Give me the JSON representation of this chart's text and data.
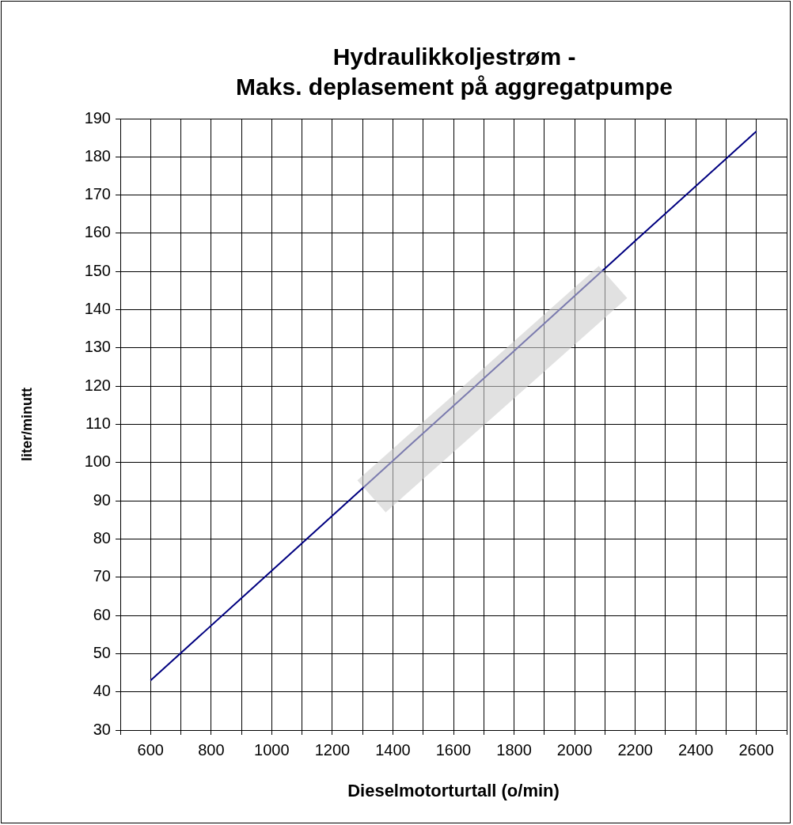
{
  "chart_data": {
    "type": "line",
    "title": "Hydraulikkoljestrøm -\nMaks. deplasement på aggregatpumpe",
    "xlabel": "Dieselmotorturtall (o/min)",
    "ylabel": "liter/minutt",
    "x": [
      600,
      1000,
      1400,
      1800,
      2200,
      2600
    ],
    "series": [
      {
        "color": "#000080",
        "values": [
          43,
          71.7,
          100.5,
          129.2,
          158,
          186.7
        ]
      }
    ],
    "xlim": [
      500,
      2700
    ],
    "xticks": [
      {
        "value": 500,
        "label": null
      },
      600,
      {
        "value": 700,
        "label": null
      },
      800,
      {
        "value": 900,
        "label": null
      },
      1000,
      {
        "value": 1100,
        "label": null
      },
      1200,
      {
        "value": 1300,
        "label": null
      },
      1400,
      {
        "value": 1500,
        "label": null
      },
      1600,
      {
        "value": 1700,
        "label": null
      },
      1800,
      {
        "value": 1900,
        "label": null
      },
      2000,
      {
        "value": 2100,
        "label": null
      },
      2200,
      {
        "value": 2300,
        "label": null
      },
      2400,
      {
        "value": 2500,
        "label": null
      },
      2600,
      {
        "value": 2700,
        "label": null
      }
    ],
    "ylim": [
      30,
      190
    ],
    "yticks": [
      30,
      40,
      50,
      60,
      70,
      80,
      90,
      100,
      110,
      120,
      130,
      140,
      150,
      160,
      170,
      180,
      190
    ],
    "grid": true,
    "legend": false,
    "marker": "none",
    "line_style": "solid"
  }
}
